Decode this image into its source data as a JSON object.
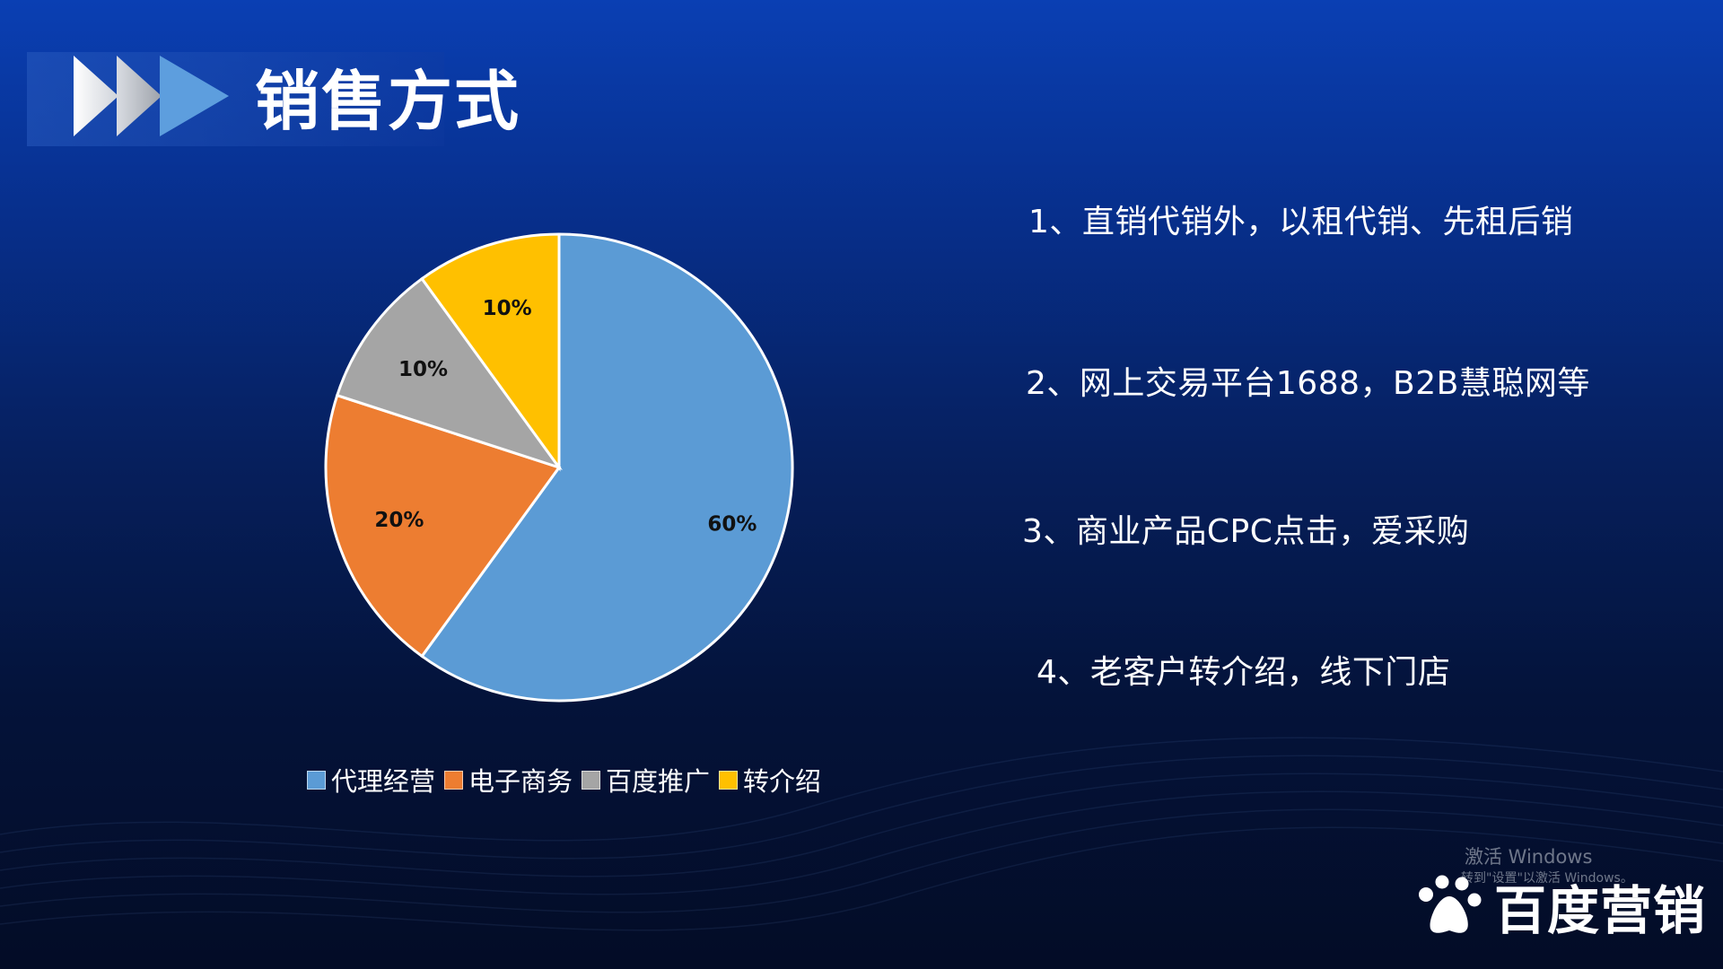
{
  "title": "销售方式",
  "chart_data": {
    "type": "pie",
    "slices": [
      {
        "label": "代理经营",
        "value": 60,
        "data_label": "60%",
        "color": "#5b9bd5"
      },
      {
        "label": "电子商务",
        "value": 20,
        "data_label": "20%",
        "color": "#ed7d31"
      },
      {
        "label": "百度推广",
        "value": 10,
        "data_label": "10%",
        "color": "#a5a5a5"
      },
      {
        "label": "转介绍",
        "value": 10,
        "data_label": "10%",
        "color": "#ffc000"
      }
    ],
    "legend_position": "bottom"
  },
  "points": [
    "1、直销代销外，以租代销、先租后销",
    "2、网上交易平台1688，B2B慧聪网等",
    "3、商业产品CPC点击，爱采购",
    "4、老客户转介绍，线下门店"
  ],
  "watermark": {
    "line1": "激活 Windows",
    "line2": "转到\"设置\"以激活 Windows。"
  },
  "brand": {
    "name": "百度营销",
    "icon": "baidu-paw-icon"
  }
}
